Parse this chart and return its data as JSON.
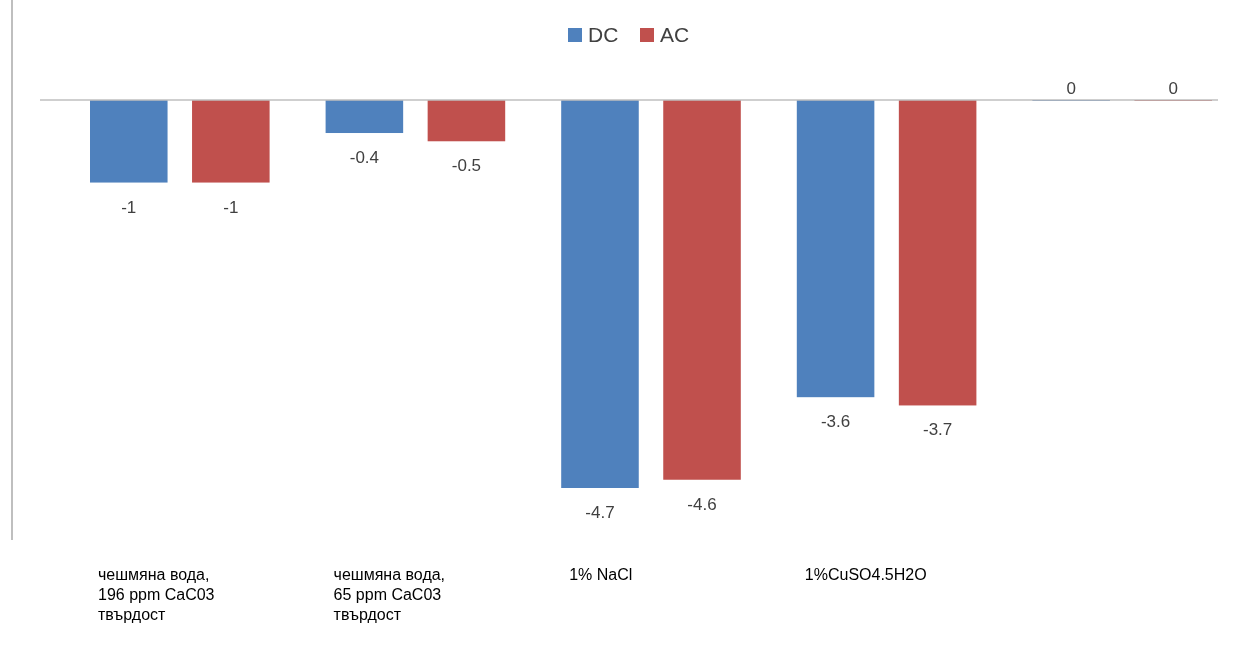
{
  "chart_data": {
    "type": "bar",
    "categories": [
      "чешмяна вода, 196 ppm CaC03 твърдост",
      "чешмяна вода, 65 ppm CaC03 твърдост",
      "1% NaCl",
      "1%CuSO4.5H2O",
      null
    ],
    "series": [
      {
        "name": "DC",
        "color": "#4f81bd",
        "values": [
          -1,
          -0.4,
          -4.7,
          -3.6,
          0
        ]
      },
      {
        "name": "AC",
        "color": "#c0504d",
        "values": [
          -1,
          -0.5,
          -4.6,
          -3.7,
          0
        ]
      }
    ],
    "relative": false,
    "data_labels": true,
    "legend": "top",
    "grid": false
  }
}
